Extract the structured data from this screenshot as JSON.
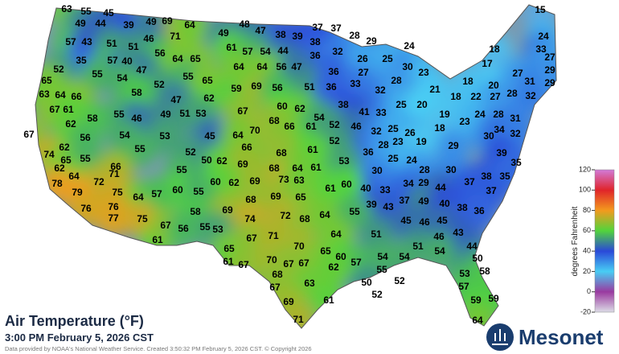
{
  "title": "Air Temperature (°F)",
  "subtitle": "3:00 PM February 5, 2026 CST",
  "credit": "Data provided by NOAA's National Weather Service. Created 3:50:32 PM February 5, 2026 CST. © Copyright 2026",
  "logo": "Mesonet",
  "colorbar": {
    "label": "degrees Fahrenheit",
    "ticks": [
      120,
      100,
      80,
      60,
      40,
      20,
      0,
      -20
    ],
    "colors": [
      "#d27ad8",
      "#e0242a",
      "#f39a1e",
      "#52d43c",
      "#2a48d8",
      "#48cdf4",
      "#9a3aa0",
      "#dcdce6"
    ]
  },
  "stations": [
    63,
    55,
    45,
    69,
    15,
    49,
    44,
    39,
    49,
    71,
    64,
    48,
    37,
    37,
    28,
    29,
    24,
    47,
    49,
    38,
    39,
    38,
    24,
    57,
    43,
    51,
    46,
    61,
    57,
    54,
    44,
    36,
    32,
    18,
    33,
    35,
    57,
    40,
    51,
    56,
    64,
    65,
    56,
    64,
    47,
    26,
    25,
    36,
    27,
    17,
    29,
    52,
    55,
    47,
    30,
    23,
    27,
    32,
    28,
    33,
    18,
    20,
    27,
    31,
    29,
    65,
    54,
    52,
    55,
    65,
    59,
    69,
    64,
    63,
    64,
    66,
    58,
    47,
    62,
    56,
    51,
    36,
    21,
    18,
    22,
    27,
    28,
    32,
    67,
    61,
    58,
    55,
    46,
    49,
    51,
    53,
    67,
    60,
    62,
    38,
    41,
    33,
    25,
    20,
    19,
    23,
    24,
    28,
    31,
    62,
    70,
    68,
    66,
    61,
    54,
    52,
    46,
    32,
    25,
    18,
    30,
    34,
    32,
    67,
    54,
    53,
    45,
    64,
    52,
    26,
    23,
    19,
    29,
    62,
    56,
    55,
    52,
    66,
    68,
    61,
    36,
    28,
    74,
    65,
    55,
    62,
    50,
    62,
    69,
    61,
    53,
    25,
    24,
    39,
    35,
    66,
    55,
    68,
    64,
    30,
    28,
    30,
    38,
    35,
    64,
    71,
    60,
    62,
    69,
    73,
    63,
    29,
    78,
    72,
    60,
    40,
    33,
    34,
    44,
    37,
    37,
    79,
    75,
    64,
    57,
    55,
    68,
    69,
    65,
    61,
    60,
    39,
    43,
    37,
    49,
    40,
    38,
    36,
    76,
    58,
    69,
    74,
    72,
    68,
    64,
    55,
    76,
    77,
    75,
    61,
    67,
    56,
    55,
    53,
    45,
    46,
    45,
    43,
    51,
    46,
    51,
    54,
    54,
    44,
    65,
    67,
    71,
    70,
    64,
    61,
    67,
    70,
    67,
    67,
    65,
    60,
    57,
    54,
    50,
    62,
    55,
    53,
    58,
    68,
    63,
    50,
    52,
    57,
    67,
    52,
    61,
    69,
    59,
    59,
    71,
    64
  ]
}
